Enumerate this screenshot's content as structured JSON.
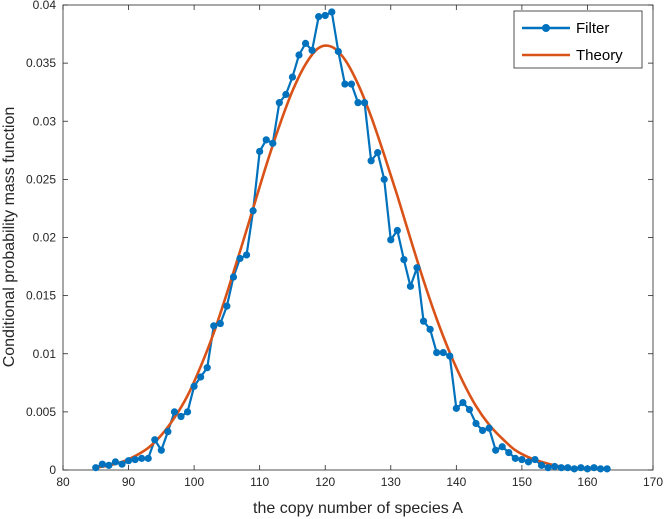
{
  "chart_data": {
    "type": "line",
    "title": "",
    "xlabel": "the copy number of species A",
    "ylabel": "Conditional probability mass function",
    "xlim": [
      80,
      170
    ],
    "ylim": [
      0,
      0.04
    ],
    "xticks": [
      80,
      90,
      100,
      110,
      120,
      130,
      140,
      150,
      160,
      170
    ],
    "xtick_labels": [
      "80",
      "90",
      "100",
      "110",
      "120",
      "130",
      "140",
      "150",
      "160",
      "170"
    ],
    "yticks": [
      0,
      0.005,
      0.01,
      0.015,
      0.02,
      0.025,
      0.03,
      0.035,
      0.04
    ],
    "ytick_labels": [
      "0",
      "0.005",
      "0.01",
      "0.015",
      "0.02",
      "0.025",
      "0.03",
      "0.035",
      "0.04"
    ],
    "grid": false,
    "legend_position": "top-right",
    "series": [
      {
        "name": "Filter",
        "color": "#0072BD",
        "marker": "circle",
        "x": [
          85,
          86,
          87,
          88,
          89,
          90,
          91,
          92,
          93,
          94,
          95,
          96,
          97,
          98,
          99,
          100,
          101,
          102,
          103,
          104,
          105,
          106,
          107,
          108,
          109,
          110,
          111,
          112,
          113,
          114,
          115,
          116,
          117,
          118,
          119,
          120,
          121,
          122,
          123,
          124,
          125,
          126,
          127,
          128,
          129,
          130,
          131,
          132,
          133,
          134,
          135,
          136,
          137,
          138,
          139,
          140,
          141,
          142,
          143,
          144,
          145,
          146,
          147,
          148,
          149,
          150,
          151,
          152,
          153,
          154,
          155,
          156,
          157,
          158,
          159,
          160,
          161,
          162,
          163
        ],
        "y": [
          0.0002,
          0.0005,
          0.0004,
          0.0007,
          0.0005,
          0.0008,
          0.0009,
          0.001,
          0.001,
          0.0026,
          0.0017,
          0.0033,
          0.005,
          0.0046,
          0.005,
          0.0072,
          0.008,
          0.0088,
          0.0124,
          0.0126,
          0.0141,
          0.0166,
          0.0182,
          0.0185,
          0.0223,
          0.0274,
          0.0284,
          0.0281,
          0.0316,
          0.0323,
          0.0338,
          0.0357,
          0.0367,
          0.0361,
          0.039,
          0.0391,
          0.0394,
          0.036,
          0.0332,
          0.0332,
          0.0316,
          0.0316,
          0.0266,
          0.0273,
          0.025,
          0.0198,
          0.0206,
          0.0181,
          0.0158,
          0.0174,
          0.0128,
          0.0121,
          0.0101,
          0.0101,
          0.0098,
          0.0053,
          0.0058,
          0.0052,
          0.004,
          0.0034,
          0.0036,
          0.0017,
          0.002,
          0.0015,
          0.001,
          0.0009,
          0.0007,
          0.0009,
          0.0004,
          0.0002,
          0.0003,
          0.0002,
          0.0002,
          0.0001,
          0.0002,
          0.0001,
          0.0002,
          0.0001,
          0.0001
        ]
      },
      {
        "name": "Theory",
        "color": "#D95319",
        "marker": "none",
        "x": [
          85,
          87,
          89,
          91,
          93,
          95,
          97,
          99,
          101,
          103,
          105,
          107,
          109,
          111,
          113,
          115,
          117,
          119,
          121,
          123,
          125,
          127,
          129,
          131,
          133,
          135,
          137,
          139,
          141,
          143,
          145,
          147,
          149,
          151,
          153,
          155,
          157,
          159,
          161,
          163
        ],
        "y": [
          0.0002,
          0.0004,
          0.0007,
          0.0012,
          0.0019,
          0.003,
          0.0045,
          0.0064,
          0.0089,
          0.0118,
          0.0152,
          0.0188,
          0.0225,
          0.0262,
          0.0296,
          0.0326,
          0.0349,
          0.0363,
          0.0364,
          0.0353,
          0.0332,
          0.0304,
          0.0271,
          0.0236,
          0.0199,
          0.0163,
          0.013,
          0.0101,
          0.0076,
          0.0055,
          0.0039,
          0.0027,
          0.0017,
          0.0011,
          0.0007,
          0.0004,
          0.0002,
          0.0001,
          0.0001,
          0.0001
        ]
      }
    ]
  }
}
